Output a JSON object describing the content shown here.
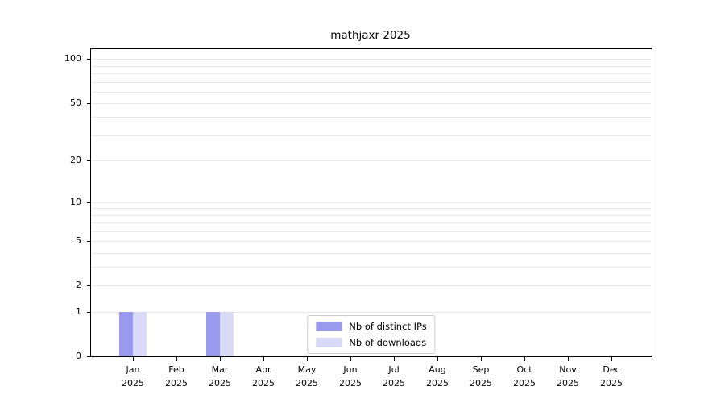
{
  "page": {
    "background": "#ffffff"
  },
  "chart_data": {
    "type": "bar",
    "title": "mathjaxr 2025",
    "categories": [
      "Jan 2025",
      "Feb 2025",
      "Mar 2025",
      "Apr 2025",
      "May 2025",
      "Jun 2025",
      "Jul 2025",
      "Aug 2025",
      "Sep 2025",
      "Oct 2025",
      "Nov 2025",
      "Dec 2025"
    ],
    "series": [
      {
        "name": "Nb of distinct IPs",
        "color": "#9999ee",
        "values": [
          1,
          0,
          1,
          0,
          0,
          0,
          0,
          0,
          0,
          0,
          0,
          0
        ]
      },
      {
        "name": "Nb of downloads",
        "color": "#d9d9f8",
        "values": [
          1,
          0,
          1,
          0,
          0,
          0,
          0,
          0,
          0,
          0,
          0,
          0
        ]
      }
    ],
    "y_ticks": [
      0,
      1,
      2,
      5,
      10,
      20,
      50,
      100
    ],
    "y_scale": "log1p",
    "ylim": [
      0,
      117
    ],
    "grid": true,
    "grid_values": [
      1,
      2,
      3,
      4,
      5,
      6,
      7,
      8,
      9,
      10,
      20,
      30,
      40,
      50,
      60,
      70,
      80,
      90,
      100
    ],
    "legend_position": "bottom-center",
    "xlabel": "",
    "ylabel": ""
  },
  "colors": {
    "grid": "#e7e7e7",
    "axis": "#000000",
    "legend_border": "#cccccc",
    "text": "#000000"
  }
}
